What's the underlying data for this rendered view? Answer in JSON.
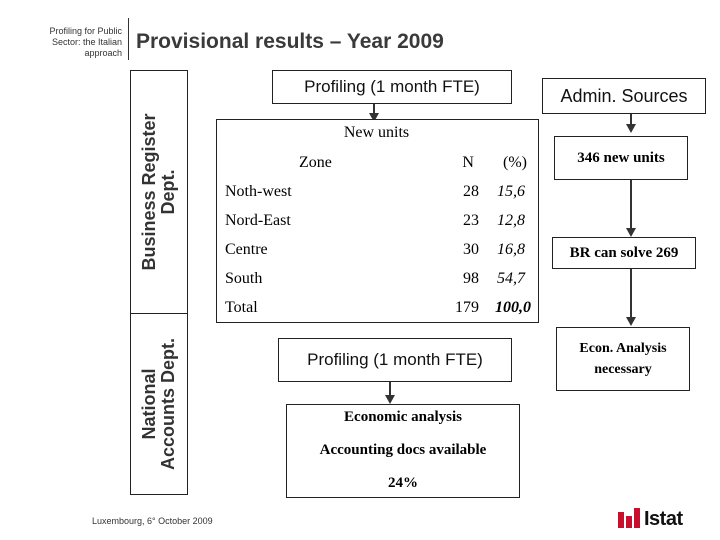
{
  "header": {
    "subtitle_lines": [
      "Profiling for Public",
      "Sector: the Italian",
      "approach"
    ],
    "title": "Provisional results – Year 2009"
  },
  "sidebar": {
    "upper_label_lines": [
      "Business Register",
      "Dept."
    ],
    "lower_label_lines": [
      "National",
      "Accounts Dept."
    ]
  },
  "profiling_top": "Profiling (1 month FTE)",
  "admin_sources": "Admin. Sources",
  "results_table": {
    "heading": "New units",
    "columns": [
      "Zone",
      "N",
      "(%)"
    ],
    "rows": [
      {
        "zone": "Noth-west",
        "n": "28",
        "pct": "15,6"
      },
      {
        "zone": "Nord-East",
        "n": "23",
        "pct": "12,8"
      },
      {
        "zone": "Centre",
        "n": "30",
        "pct": "16,8"
      },
      {
        "zone": "South",
        "n": "98",
        "pct": "54,7"
      },
      {
        "zone": "Total",
        "n": "179",
        "pct": "100,0"
      }
    ]
  },
  "right_column": {
    "new_units": "346 new units",
    "br_can_solve": "BR can solve 269",
    "econ_analysis_lines": [
      "Econ. Analysis",
      "necessary"
    ]
  },
  "profiling_bottom": "Profiling (1 month FTE)",
  "economic_box": {
    "line1": "Economic analysis",
    "line2": "Accounting docs available",
    "line3": "24%"
  },
  "footer": "Luxembourg, 6° October 2009",
  "logo": {
    "text": "Istat",
    "color": "#c8102e"
  }
}
